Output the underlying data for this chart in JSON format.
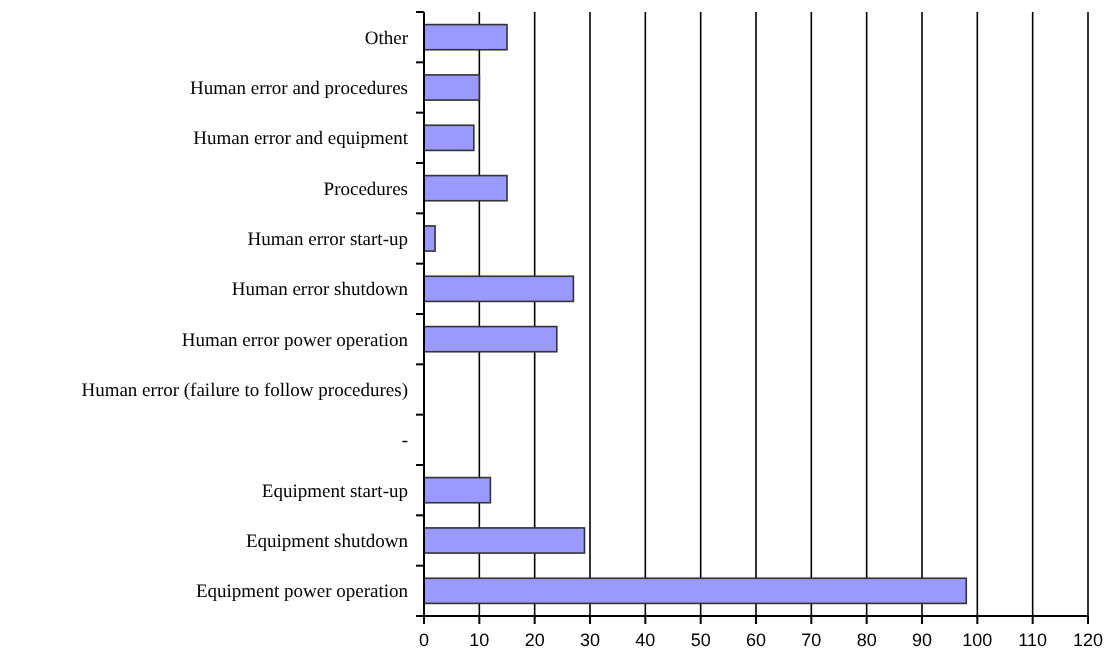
{
  "chart_data": {
    "type": "bar",
    "orientation": "horizontal",
    "categories": [
      "Other",
      "Human error and procedures",
      "Human error and equipment",
      "Procedures",
      "Human error start-up",
      "Human error shutdown",
      "Human error power operation",
      "Human error (failure to follow procedures)",
      "-",
      "Equipment start-up",
      "Equipment shutdown",
      "Equipment power operation"
    ],
    "values": [
      15,
      10,
      9,
      15,
      2,
      27,
      24,
      null,
      null,
      12,
      29,
      98
    ],
    "color": "#9999ff",
    "xlim": [
      0,
      120
    ],
    "xticks": [
      0,
      10,
      20,
      30,
      40,
      50,
      60,
      70,
      80,
      90,
      100,
      110,
      120
    ],
    "grid": "x"
  }
}
